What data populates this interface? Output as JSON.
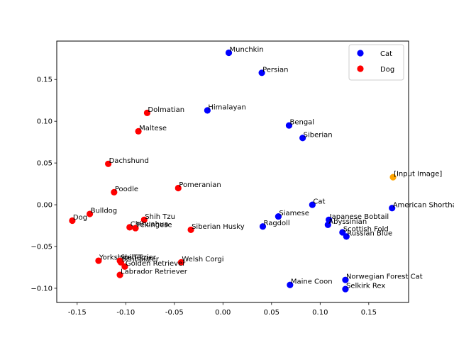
{
  "chart_data": {
    "type": "scatter",
    "xlim": [
      -0.171,
      0.191
    ],
    "ylim": [
      -0.117,
      0.196
    ],
    "x_ticks": [
      "-0.15",
      "-0.10",
      "-0.05",
      "0.00",
      "0.05",
      "0.10",
      "0.15"
    ],
    "x_tick_values": [
      -0.15,
      -0.1,
      -0.05,
      0.0,
      0.05,
      0.1,
      0.15
    ],
    "y_ticks": [
      "−0.10",
      "−0.05",
      "0.00",
      "0.05",
      "0.10",
      "0.15"
    ],
    "y_tick_values": [
      -0.1,
      -0.05,
      0.0,
      0.05,
      0.1,
      0.15
    ],
    "grid": false,
    "legend_position": "top-right",
    "series": [
      {
        "name": "Cat",
        "color": "#0000ff",
        "points": [
          {
            "label": "Munchkin",
            "x": 0.006,
            "y": 0.182
          },
          {
            "label": "Persian",
            "x": 0.04,
            "y": 0.158
          },
          {
            "label": "Himalayan",
            "x": -0.016,
            "y": 0.113
          },
          {
            "label": "Bengal",
            "x": 0.068,
            "y": 0.095
          },
          {
            "label": "Siberian",
            "x": 0.082,
            "y": 0.08
          },
          {
            "label": "Cat",
            "x": 0.092,
            "y": 0.0
          },
          {
            "label": "American Shorthair",
            "x": 0.174,
            "y": -0.004
          },
          {
            "label": "Siamese",
            "x": 0.057,
            "y": -0.014
          },
          {
            "label": "Japanese Bobtail",
            "x": 0.109,
            "y": -0.018
          },
          {
            "label": "Abyssinian",
            "x": 0.108,
            "y": -0.024
          },
          {
            "label": "Ragdoll",
            "x": 0.041,
            "y": -0.026
          },
          {
            "label": "Scottish Fold",
            "x": 0.123,
            "y": -0.033
          },
          {
            "label": "Russian Blue",
            "x": 0.127,
            "y": -0.038
          },
          {
            "label": "Norwegian Forest Cat",
            "x": 0.126,
            "y": -0.09
          },
          {
            "label": "Maine Coon",
            "x": 0.069,
            "y": -0.096
          },
          {
            "label": "Selkirk Rex",
            "x": 0.126,
            "y": -0.101
          }
        ]
      },
      {
        "name": "Dog",
        "color": "#ff0000",
        "points": [
          {
            "label": "Dolmatian",
            "x": -0.078,
            "y": 0.11
          },
          {
            "label": "Maltese",
            "x": -0.087,
            "y": 0.088
          },
          {
            "label": "Dachshund",
            "x": -0.118,
            "y": 0.049
          },
          {
            "label": "Pomeranian",
            "x": -0.046,
            "y": 0.02
          },
          {
            "label": "Poodle",
            "x": -0.112,
            "y": 0.015
          },
          {
            "label": "Bulldog",
            "x": -0.137,
            "y": -0.011
          },
          {
            "label": "Dog",
            "x": -0.155,
            "y": -0.019
          },
          {
            "label": "Shih Tzu",
            "x": -0.081,
            "y": -0.018
          },
          {
            "label": "Chihuahua",
            "x": -0.096,
            "y": -0.027
          },
          {
            "label": "Pekingese",
            "x": -0.09,
            "y": -0.028
          },
          {
            "label": "Siberian Husky",
            "x": -0.033,
            "y": -0.03
          },
          {
            "label": "Yorkshire Terrier",
            "x": -0.128,
            "y": -0.067
          },
          {
            "label": "Shih Tzu",
            "x": -0.106,
            "y": -0.067
          },
          {
            "label": "Schnauzer",
            "x": -0.105,
            "y": -0.069
          },
          {
            "label": "Welsh Corgi",
            "x": -0.043,
            "y": -0.069
          },
          {
            "label": "Golden Retriever",
            "x": -0.101,
            "y": -0.074
          },
          {
            "label": "Labrador Retriever",
            "x": -0.106,
            "y": -0.084
          }
        ]
      },
      {
        "color": "#ffa500",
        "points": [
          {
            "label": "[Input Image]",
            "x": 0.175,
            "y": 0.033
          }
        ]
      }
    ]
  }
}
